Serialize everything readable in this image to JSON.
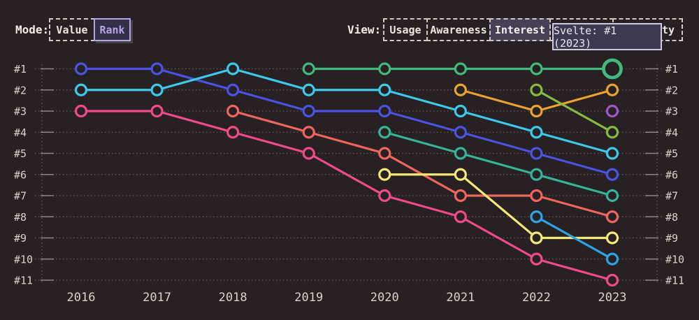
{
  "colors": {
    "background": "#272123",
    "text": "#ece7e0",
    "axis_label": "#d9d3cb",
    "grid": "#a39d96",
    "button_border": "#cfc9c2",
    "accent_lavender": "#b3a5e8",
    "active_view_bg": "#474158",
    "tooltip_bg": "#3e3952",
    "tooltip_border": "#d0cade"
  },
  "toolbar": {
    "mode": {
      "label": "Mode:",
      "options": [
        {
          "label": "Value",
          "active": false
        },
        {
          "label": "Rank",
          "active": true
        }
      ]
    },
    "view": {
      "label": "View:",
      "options": [
        {
          "label": "Usage",
          "active": false
        },
        {
          "label": "Awareness",
          "active": false
        },
        {
          "label": "Interest",
          "active": true
        },
        {
          "label": "",
          "active": false,
          "note": "fully hidden behind tooltip"
        },
        {
          "label": "ty",
          "active": false,
          "note": "clipped by tooltip, only 'ty' visible"
        }
      ]
    }
  },
  "tooltip": {
    "text": "Svelte: #1 (2023)"
  },
  "chart_data": {
    "type": "line",
    "variant": "bump-rank",
    "x_labels": [
      "2016",
      "2017",
      "2018",
      "2019",
      "2020",
      "2021",
      "2022",
      "2023"
    ],
    "rank_labels": [
      "#1",
      "#2",
      "#3",
      "#4",
      "#5",
      "#6",
      "#7",
      "#8",
      "#9",
      "#10",
      "#11"
    ],
    "y_axis": "rank (1 = best, top)",
    "y_range": [
      1,
      11
    ],
    "grid": "dotted horizontal line per rank, dotted vertical axis lines left and right",
    "legend_position": "none",
    "highlight": {
      "series": "svelte-green",
      "year": "2023",
      "rank": 1,
      "tooltip_text": "Svelte: #1 (2023)"
    },
    "series": [
      {
        "name": "blue",
        "color": "#4b53e3",
        "ranks": [
          1,
          1,
          2,
          3,
          3,
          4,
          5,
          6
        ]
      },
      {
        "name": "cyan",
        "color": "#3ec9ea",
        "ranks": [
          2,
          2,
          1,
          2,
          2,
          3,
          4,
          5
        ]
      },
      {
        "name": "pink",
        "color": "#f04b88",
        "ranks": [
          3,
          3,
          4,
          5,
          7,
          8,
          10,
          11
        ]
      },
      {
        "name": "salmon",
        "color": "#f0655c",
        "ranks": [
          null,
          null,
          3,
          4,
          5,
          7,
          7,
          8
        ]
      },
      {
        "name": "svelte-green",
        "color": "#41ba7c",
        "ranks": [
          null,
          null,
          null,
          1,
          1,
          1,
          1,
          1
        ]
      },
      {
        "name": "teal",
        "color": "#37b29b",
        "ranks": [
          null,
          null,
          null,
          null,
          4,
          5,
          6,
          7
        ]
      },
      {
        "name": "yellow",
        "color": "#f5e878",
        "ranks": [
          null,
          null,
          null,
          null,
          6,
          6,
          9,
          9
        ]
      },
      {
        "name": "orange",
        "color": "#eba32f",
        "ranks": [
          null,
          null,
          null,
          null,
          null,
          2,
          3,
          2
        ]
      },
      {
        "name": "olive",
        "color": "#85bb40",
        "ranks": [
          null,
          null,
          null,
          null,
          null,
          null,
          2,
          4
        ]
      },
      {
        "name": "skyblue",
        "color": "#30a2e6",
        "ranks": [
          null,
          null,
          null,
          null,
          null,
          null,
          8,
          10
        ]
      },
      {
        "name": "purple",
        "color": "#a058c8",
        "ranks": [
          null,
          null,
          null,
          null,
          null,
          null,
          null,
          3
        ]
      }
    ]
  }
}
